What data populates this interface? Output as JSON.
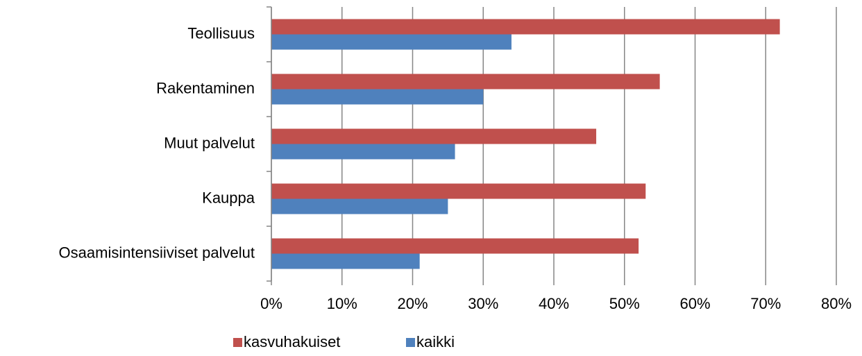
{
  "chart_data": {
    "type": "hbar",
    "categories": [
      "Teollisuus",
      "Rakentaminen",
      "Muut palvelut",
      "Kauppa",
      "Osaamisintensiiviset palvelut"
    ],
    "series": [
      {
        "name": "kasvuhakuiset",
        "color": "#c0504d",
        "values": [
          72,
          55,
          46,
          53,
          52
        ]
      },
      {
        "name": "kaikki",
        "color": "#4f81bd",
        "values": [
          34,
          30,
          26,
          25,
          21
        ]
      }
    ],
    "xlim": [
      0,
      80
    ],
    "xticks": [
      {
        "value": 0,
        "label": "0%"
      },
      {
        "value": 10,
        "label": "10%"
      },
      {
        "value": 20,
        "label": "20%"
      },
      {
        "value": 30,
        "label": "30%"
      },
      {
        "value": 40,
        "label": "40%"
      },
      {
        "value": 50,
        "label": "50%"
      },
      {
        "value": 60,
        "label": "60%"
      },
      {
        "value": 70,
        "label": "70%"
      },
      {
        "value": 80,
        "label": "80%"
      }
    ],
    "grid": true,
    "legend": "bottom"
  }
}
